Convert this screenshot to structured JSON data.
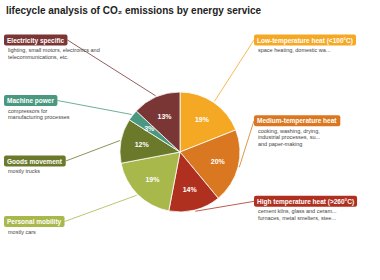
{
  "chart_data": {
    "type": "pie",
    "title": "lifecycle analysis of CO₂ emissions by energy service",
    "categories": [
      "Low-temperature heat (<100°C)",
      "Medium-temperature heat",
      "High temperature heat (>260°C)",
      "Personal mobility",
      "Goods movement",
      "Machine power",
      "Electricity specific"
    ],
    "values": [
      19,
      20,
      14,
      19,
      12,
      3,
      13
    ],
    "value_labels": [
      "19%",
      "20%",
      "14%",
      "19%",
      "12%",
      "3%",
      "13%"
    ],
    "data_labels": true,
    "colors": [
      "#F5A823",
      "#D97820",
      "#B03020",
      "#A8B84B",
      "#6B7A2A",
      "#4A9880",
      "#7A3535"
    ],
    "annotations": [
      "space heating, domestic wa...",
      "cooking, washing, drying,\nindustrial processes, su...\nand paper-making",
      "cement kilns, glass and ceram...\nfurnaces, metal smelters, stee...",
      "mostly cars",
      "mostly trucks",
      "compressors for\nmanufacturing processes",
      "lighting, small motors, electronics and\ntelecommunications, etc."
    ]
  }
}
